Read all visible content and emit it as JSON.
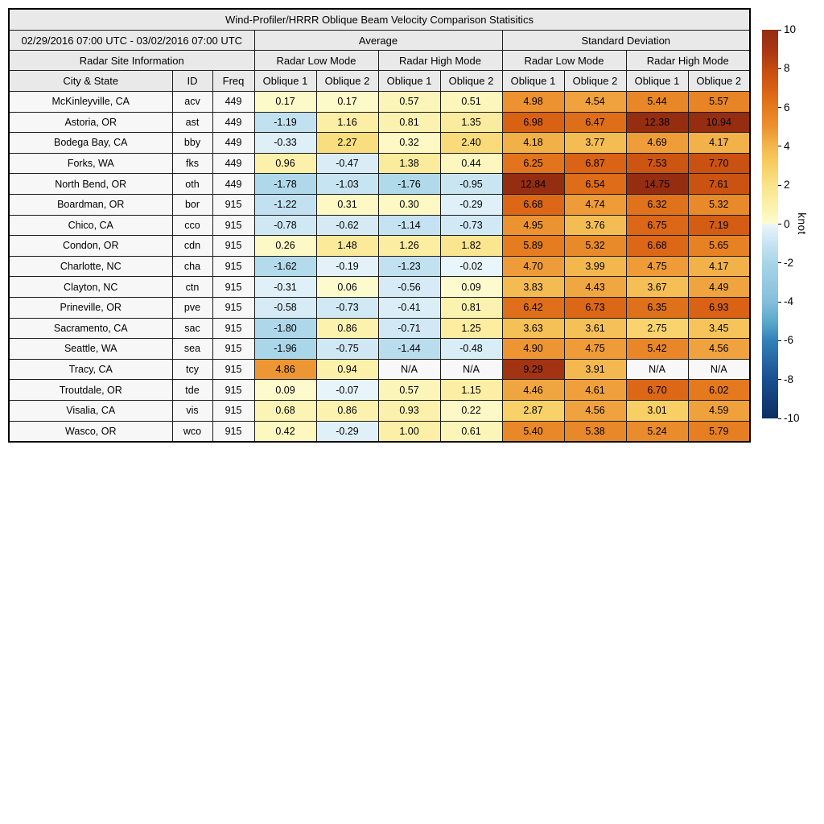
{
  "chart_data": {
    "type": "heatmap",
    "title": "Wind-Profiler/HRRR Oblique Beam Velocity Comparison Statisitics",
    "date_range": "02/29/2016 07:00 UTC - 03/02/2016 07:00 UTC",
    "group_headers": {
      "average": "Average",
      "std": "Standard Deviation"
    },
    "site_info_header": "Radar Site Information",
    "mode_headers": [
      "Radar Low Mode",
      "Radar High Mode",
      "Radar Low Mode",
      "Radar High Mode"
    ],
    "columns": [
      "City & State",
      "ID",
      "Freq",
      "Oblique 1",
      "Oblique 2",
      "Oblique 1",
      "Oblique 2",
      "Oblique 1",
      "Oblique 2",
      "Oblique 1",
      "Oblique 2"
    ],
    "rows": [
      {
        "city": "McKinleyville, CA",
        "id": "acv",
        "freq": "449",
        "cells": [
          "0.17",
          "0.17",
          "0.57",
          "0.51",
          "4.98",
          "4.54",
          "5.44",
          "5.57"
        ]
      },
      {
        "city": "Astoria, OR",
        "id": "ast",
        "freq": "449",
        "cells": [
          "-1.19",
          "1.16",
          "0.81",
          "1.35",
          "6.98",
          "6.47",
          "12.38",
          "10.94"
        ]
      },
      {
        "city": "Bodega Bay, CA",
        "id": "bby",
        "freq": "449",
        "cells": [
          "-0.33",
          "2.27",
          "0.32",
          "2.40",
          "4.18",
          "3.77",
          "4.69",
          "4.17"
        ]
      },
      {
        "city": "Forks, WA",
        "id": "fks",
        "freq": "449",
        "cells": [
          "0.96",
          "-0.47",
          "1.38",
          "0.44",
          "6.25",
          "6.87",
          "7.53",
          "7.70"
        ]
      },
      {
        "city": "North Bend, OR",
        "id": "oth",
        "freq": "449",
        "cells": [
          "-1.78",
          "-1.03",
          "-1.76",
          "-0.95",
          "12.84",
          "6.54",
          "14.75",
          "7.61"
        ]
      },
      {
        "city": "Boardman, OR",
        "id": "bor",
        "freq": "915",
        "cells": [
          "-1.22",
          "0.31",
          "0.30",
          "-0.29",
          "6.68",
          "4.74",
          "6.32",
          "5.32"
        ]
      },
      {
        "city": "Chico, CA",
        "id": "cco",
        "freq": "915",
        "cells": [
          "-0.78",
          "-0.62",
          "-1.14",
          "-0.73",
          "4.95",
          "3.76",
          "6.75",
          "7.19"
        ]
      },
      {
        "city": "Condon, OR",
        "id": "cdn",
        "freq": "915",
        "cells": [
          "0.26",
          "1.48",
          "1.26",
          "1.82",
          "5.89",
          "5.32",
          "6.68",
          "5.65"
        ]
      },
      {
        "city": "Charlotte, NC",
        "id": "cha",
        "freq": "915",
        "cells": [
          "-1.62",
          "-0.19",
          "-1.23",
          "-0.02",
          "4.70",
          "3.99",
          "4.75",
          "4.17"
        ]
      },
      {
        "city": "Clayton, NC",
        "id": "ctn",
        "freq": "915",
        "cells": [
          "-0.31",
          "0.06",
          "-0.56",
          "0.09",
          "3.83",
          "4.43",
          "3.67",
          "4.49"
        ]
      },
      {
        "city": "Prineville, OR",
        "id": "pve",
        "freq": "915",
        "cells": [
          "-0.58",
          "-0.73",
          "-0.41",
          "0.81",
          "6.42",
          "6.73",
          "6.35",
          "6.93"
        ]
      },
      {
        "city": "Sacramento, CA",
        "id": "sac",
        "freq": "915",
        "cells": [
          "-1.80",
          "0.86",
          "-0.71",
          "1.25",
          "3.63",
          "3.61",
          "2.75",
          "3.45"
        ]
      },
      {
        "city": "Seattle, WA",
        "id": "sea",
        "freq": "915",
        "cells": [
          "-1.96",
          "-0.75",
          "-1.44",
          "-0.48",
          "4.90",
          "4.75",
          "5.42",
          "4.56"
        ]
      },
      {
        "city": "Tracy, CA",
        "id": "tcy",
        "freq": "915",
        "cells": [
          "4.86",
          "0.94",
          "N/A",
          "N/A",
          "9.29",
          "3.91",
          "N/A",
          "N/A"
        ]
      },
      {
        "city": "Troutdale, OR",
        "id": "tde",
        "freq": "915",
        "cells": [
          "0.09",
          "-0.07",
          "0.57",
          "1.15",
          "4.46",
          "4.61",
          "6.70",
          "6.02"
        ]
      },
      {
        "city": "Visalia, CA",
        "id": "vis",
        "freq": "915",
        "cells": [
          "0.68",
          "0.86",
          "0.93",
          "0.22",
          "2.87",
          "4.56",
          "3.01",
          "4.59"
        ]
      },
      {
        "city": "Wasco, OR",
        "id": "wco",
        "freq": "915",
        "cells": [
          "0.42",
          "-0.29",
          "1.00",
          "0.61",
          "5.40",
          "5.38",
          "5.24",
          "5.79"
        ]
      }
    ]
  },
  "colorbar": {
    "unit": "knot",
    "min": -10,
    "max": 10,
    "ticks": [
      "10",
      "8",
      "6",
      "4",
      "2",
      "0",
      "-2",
      "-4",
      "-6",
      "-8",
      "-10"
    ],
    "na_color": "#f8f8f8",
    "anchors": [
      {
        "v": -10,
        "c": "#0c2f62"
      },
      {
        "v": -8,
        "c": "#1a4f90"
      },
      {
        "v": -6,
        "c": "#3380b8"
      },
      {
        "v": -5,
        "c": "#5baacb"
      },
      {
        "v": -4,
        "c": "#85bedb"
      },
      {
        "v": -2,
        "c": "#a8d5e8"
      },
      {
        "v": -1,
        "c": "#c8e4f2"
      },
      {
        "v": -0.001,
        "c": "#e9f5fb"
      },
      {
        "v": 0.001,
        "c": "#fdfcd0"
      },
      {
        "v": 1,
        "c": "#fcf0a9"
      },
      {
        "v": 2,
        "c": "#fae38a"
      },
      {
        "v": 3,
        "c": "#f8cf64"
      },
      {
        "v": 4,
        "c": "#f3b74e"
      },
      {
        "v": 5,
        "c": "#ec9130"
      },
      {
        "v": 6,
        "c": "#e47a1e"
      },
      {
        "v": 7,
        "c": "#d86014"
      },
      {
        "v": 8,
        "c": "#c24b10"
      },
      {
        "v": 9,
        "c": "#a83514"
      },
      {
        "v": 10,
        "c": "#952d11"
      }
    ]
  },
  "theme": {
    "header_bg": "#e9e9e9",
    "label_bg": "#f7f7f7",
    "border": "#1c1c1c",
    "background": "#ffffff"
  }
}
